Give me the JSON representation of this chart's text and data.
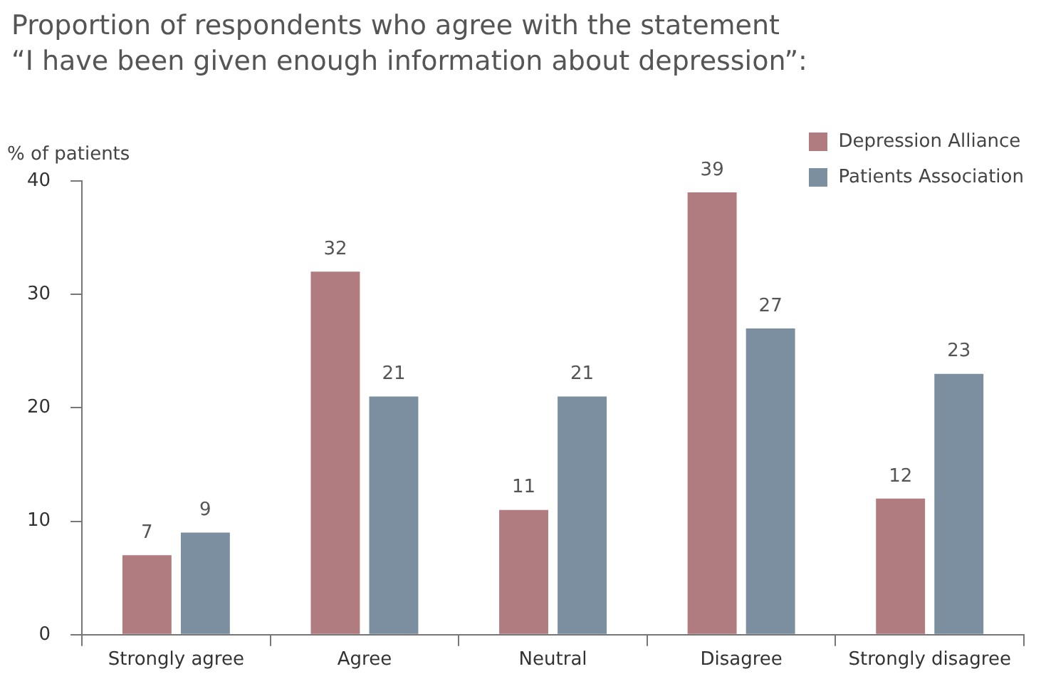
{
  "chart_data": {
    "type": "bar",
    "title": "Proportion of respondents who agree with the statement “I have been given enough information about depression”:",
    "ylabel": "% of patients",
    "categories": [
      "Strongly agree",
      "Agree",
      "Neutral",
      "Disagree",
      "Strongly disagree"
    ],
    "series": [
      {
        "name": "Depression Alliance",
        "color": "#b07c80",
        "values": [
          7,
          32,
          11,
          39,
          12
        ]
      },
      {
        "name": "Patients Association",
        "color": "#7b8fa0",
        "values": [
          9,
          21,
          21,
          27,
          23
        ]
      }
    ],
    "ylim": [
      0,
      40
    ],
    "yticks": [
      0,
      10,
      20,
      30,
      40
    ],
    "grid": false,
    "legend": "top right",
    "data_labels": true
  }
}
